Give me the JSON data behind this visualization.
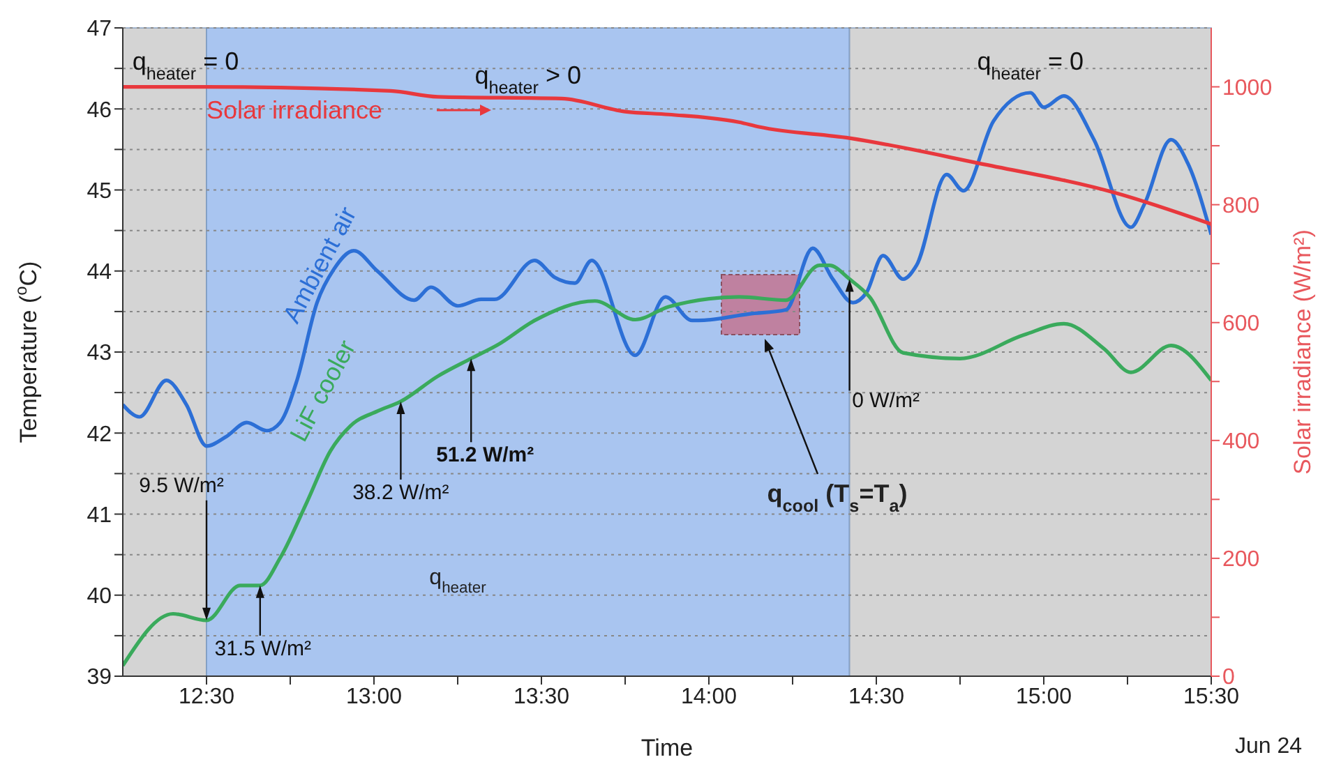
{
  "chart_data": {
    "type": "line",
    "xlabel": "Time",
    "ylabel": "Temperature ($^{o}$C)",
    "y2label": "Solar irradiance (W/m²)",
    "xlim": [
      12.25,
      15.5
    ],
    "xticks": [
      {
        "value": 12.5,
        "label": "12:30"
      },
      {
        "value": 12.75,
        "label": null
      },
      {
        "value": 13,
        "label": "13:00"
      },
      {
        "value": 13.25,
        "label": null
      },
      {
        "value": 13.5,
        "label": "13:30"
      },
      {
        "value": 13.75,
        "label": null
      },
      {
        "value": 14,
        "label": "14:00"
      },
      {
        "value": 14.25,
        "label": null
      },
      {
        "value": 14.5,
        "label": "14:30"
      },
      {
        "value": 14.75,
        "label": null
      },
      {
        "value": 15,
        "label": "15:00"
      },
      {
        "value": 15.25,
        "label": null
      },
      {
        "value": 15.5,
        "label": "15:30"
      }
    ],
    "ylim": [
      39,
      47
    ],
    "yticks": [
      39,
      {
        "value": 39.5,
        "label": null
      },
      40,
      {
        "value": 40.5,
        "label": null
      },
      41,
      {
        "value": 41.5,
        "label": null
      },
      42,
      {
        "value": 42.5,
        "label": null
      },
      43,
      {
        "value": 43.5,
        "label": null
      },
      44,
      {
        "value": 44.5,
        "label": null
      },
      45,
      {
        "value": 45.5,
        "label": null
      },
      46,
      {
        "value": 46.5,
        "label": null
      },
      47
    ],
    "y2lim": [
      0,
      1100
    ],
    "y2ticks": [
      0,
      {
        "value": 100,
        "label": null
      },
      200,
      {
        "value": 300,
        "label": null
      },
      400,
      {
        "value": 500,
        "label": null
      },
      600,
      {
        "value": 700,
        "label": null
      },
      800,
      {
        "value": 900,
        "label": null
      },
      1000
    ],
    "grid": "y",
    "marker": "none",
    "line_style": "solid",
    "series": [
      {
        "name": "Ambient air",
        "color": "#2c6fd6",
        "x": [
          12.25,
          12.3,
          12.38,
          12.44,
          12.5,
          12.56,
          12.62,
          12.68,
          12.72,
          12.77,
          12.83,
          12.88,
          12.94,
          13.01,
          13.12,
          13.17,
          13.25,
          13.32,
          13.36,
          13.48,
          13.54,
          13.6,
          13.65,
          13.78,
          13.87,
          13.95,
          13.97,
          14.12,
          14.23,
          14.31,
          14.37,
          14.43,
          14.47,
          14.52,
          14.58,
          14.62,
          14.71,
          14.76,
          14.85,
          14.96,
          15.0,
          15.06,
          15.15,
          15.26,
          15.3,
          15.38,
          15.43,
          15.5
        ],
        "values": [
          42.35,
          42.2,
          42.65,
          42.35,
          41.84,
          41.96,
          42.13,
          42.03,
          42.13,
          42.65,
          43.61,
          44.02,
          44.25,
          44.0,
          43.64,
          43.8,
          43.57,
          43.65,
          43.65,
          44.13,
          43.92,
          43.85,
          44.13,
          42.96,
          43.68,
          43.39,
          43.39,
          43.47,
          43.52,
          44.28,
          43.9,
          43.61,
          43.73,
          44.19,
          43.9,
          44.07,
          45.19,
          44.99,
          45.85,
          46.2,
          46.02,
          46.16,
          45.62,
          44.54,
          44.82,
          45.62,
          45.33,
          44.45
        ]
      },
      {
        "name": "LiF cooler",
        "color": "#3aaa5c",
        "x": [
          12.25,
          12.4,
          12.5,
          12.6,
          12.66,
          12.72,
          12.8,
          12.87,
          12.93,
          13.01,
          13.08,
          13.19,
          13.29,
          13.37,
          13.48,
          13.66,
          13.78,
          13.88,
          14.09,
          14.23,
          14.33,
          14.36,
          14.42,
          14.48,
          14.58,
          14.75,
          14.94,
          15.06,
          15.18,
          15.26,
          15.38,
          15.5
        ],
        "values": [
          39.13,
          39.77,
          39.69,
          40.12,
          40.12,
          40.46,
          41.15,
          41.78,
          42.09,
          42.27,
          42.39,
          42.7,
          42.92,
          43.09,
          43.39,
          43.63,
          43.4,
          43.56,
          43.68,
          43.64,
          44.07,
          44.07,
          43.9,
          43.68,
          42.99,
          42.92,
          43.21,
          43.35,
          43.04,
          42.75,
          43.08,
          42.65
        ]
      },
      {
        "name": "Solar irradiance",
        "color": "#e8383d",
        "axis": "y2",
        "x": [
          12.25,
          12.5,
          13.05,
          13.19,
          13.56,
          13.75,
          13.88,
          14.09,
          14.15,
          14.42,
          14.8,
          15.22,
          15.5
        ],
        "values": [
          1000,
          1000,
          993,
          983,
          980,
          958,
          953,
          940,
          932,
          913,
          871,
          819,
          767
        ]
      }
    ],
    "bands": [
      {
        "axis": "x",
        "from": 12.25,
        "to": 12.5,
        "label": "q$_{heater}$ = 0",
        "color": "#d4d4d4"
      },
      {
        "axis": "x",
        "from": 12.5,
        "to": 14.42,
        "label": "q$_{heater}$ > 0",
        "color": "#a9c5f0"
      },
      {
        "axis": "x",
        "from": 14.42,
        "to": 15.5,
        "label": "q$_{heater}$ = 0",
        "color": "#d4d4d4"
      }
    ],
    "annotations": [
      {
        "text": "9.5 W/m²",
        "x": 12.5,
        "y": 39.69
      },
      {
        "text": "31.5 W/m²",
        "x": 12.66,
        "y": 40.12
      },
      {
        "text": "38.2 W/m²",
        "x": 13.08,
        "y": 42.39
      },
      {
        "text": "51.2 W/m²",
        "x": 13.29,
        "y": 42.92
      },
      {
        "text": "0 W/m²",
        "x": 14.42,
        "y": 43.9
      },
      "q$_{cool}$ (T$_{s}$=T$_{a}$)",
      "q$_{heater}$",
      "Jun 24"
    ]
  }
}
